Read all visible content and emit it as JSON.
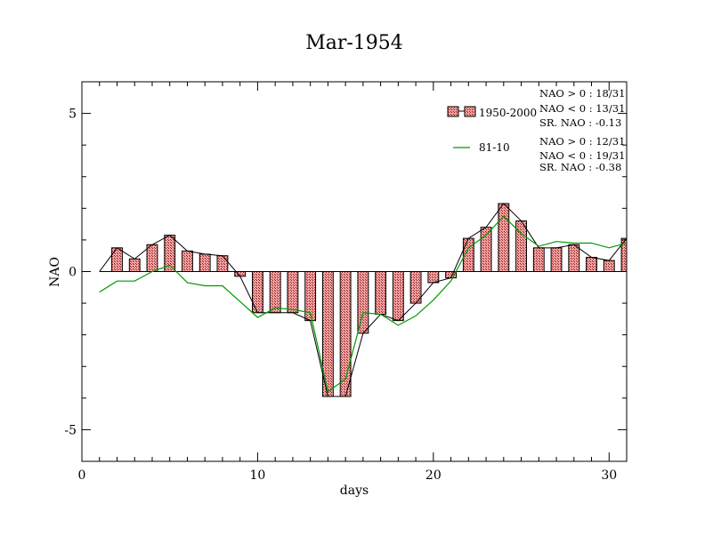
{
  "chart_data": {
    "type": "bar",
    "title": "Mar-1954",
    "xlabel": "days",
    "ylabel": "NAO",
    "xlim": [
      0,
      31
    ],
    "ylim": [
      -6,
      6
    ],
    "xticks": [
      0,
      10,
      20,
      30
    ],
    "yticks": [
      -5,
      0,
      5
    ],
    "grid": false,
    "legend_position": "top-right",
    "x": [
      1,
      2,
      3,
      4,
      5,
      6,
      7,
      8,
      9,
      10,
      11,
      12,
      13,
      14,
      15,
      16,
      17,
      18,
      19,
      20,
      21,
      22,
      23,
      24,
      25,
      26,
      27,
      28,
      29,
      30,
      31
    ],
    "series": [
      {
        "name": "1950-2000",
        "kind": "bar",
        "color": "#f08080",
        "values": [
          0.0,
          0.75,
          0.4,
          0.85,
          1.15,
          0.65,
          0.55,
          0.5,
          -0.15,
          -1.3,
          -1.3,
          -1.3,
          -1.55,
          -3.95,
          -3.95,
          -1.95,
          -1.35,
          -1.55,
          -1.0,
          -0.35,
          -0.2,
          1.05,
          1.4,
          2.15,
          1.6,
          0.75,
          0.75,
          0.85,
          0.45,
          0.35,
          1.05
        ]
      },
      {
        "name": "81-10",
        "kind": "line",
        "color": "#009900",
        "values": [
          -0.65,
          -0.3,
          -0.3,
          0.0,
          0.2,
          -0.35,
          -0.45,
          -0.45,
          -0.95,
          -1.45,
          -1.15,
          -1.2,
          -1.3,
          -3.8,
          -3.4,
          -1.3,
          -1.35,
          -1.7,
          -1.4,
          -0.9,
          -0.3,
          0.75,
          1.15,
          1.75,
          1.2,
          0.8,
          0.95,
          0.9,
          0.9,
          0.75,
          0.9
        ]
      }
    ],
    "stats": [
      [
        "NAO > 0 : 18/31",
        "NAO < 0 : 13/31",
        "SR. NAO : -0.13"
      ],
      [
        "NAO > 0 : 12/31",
        "NAO < 0 : 19/31",
        "SR. NAO : -0.38"
      ]
    ]
  }
}
